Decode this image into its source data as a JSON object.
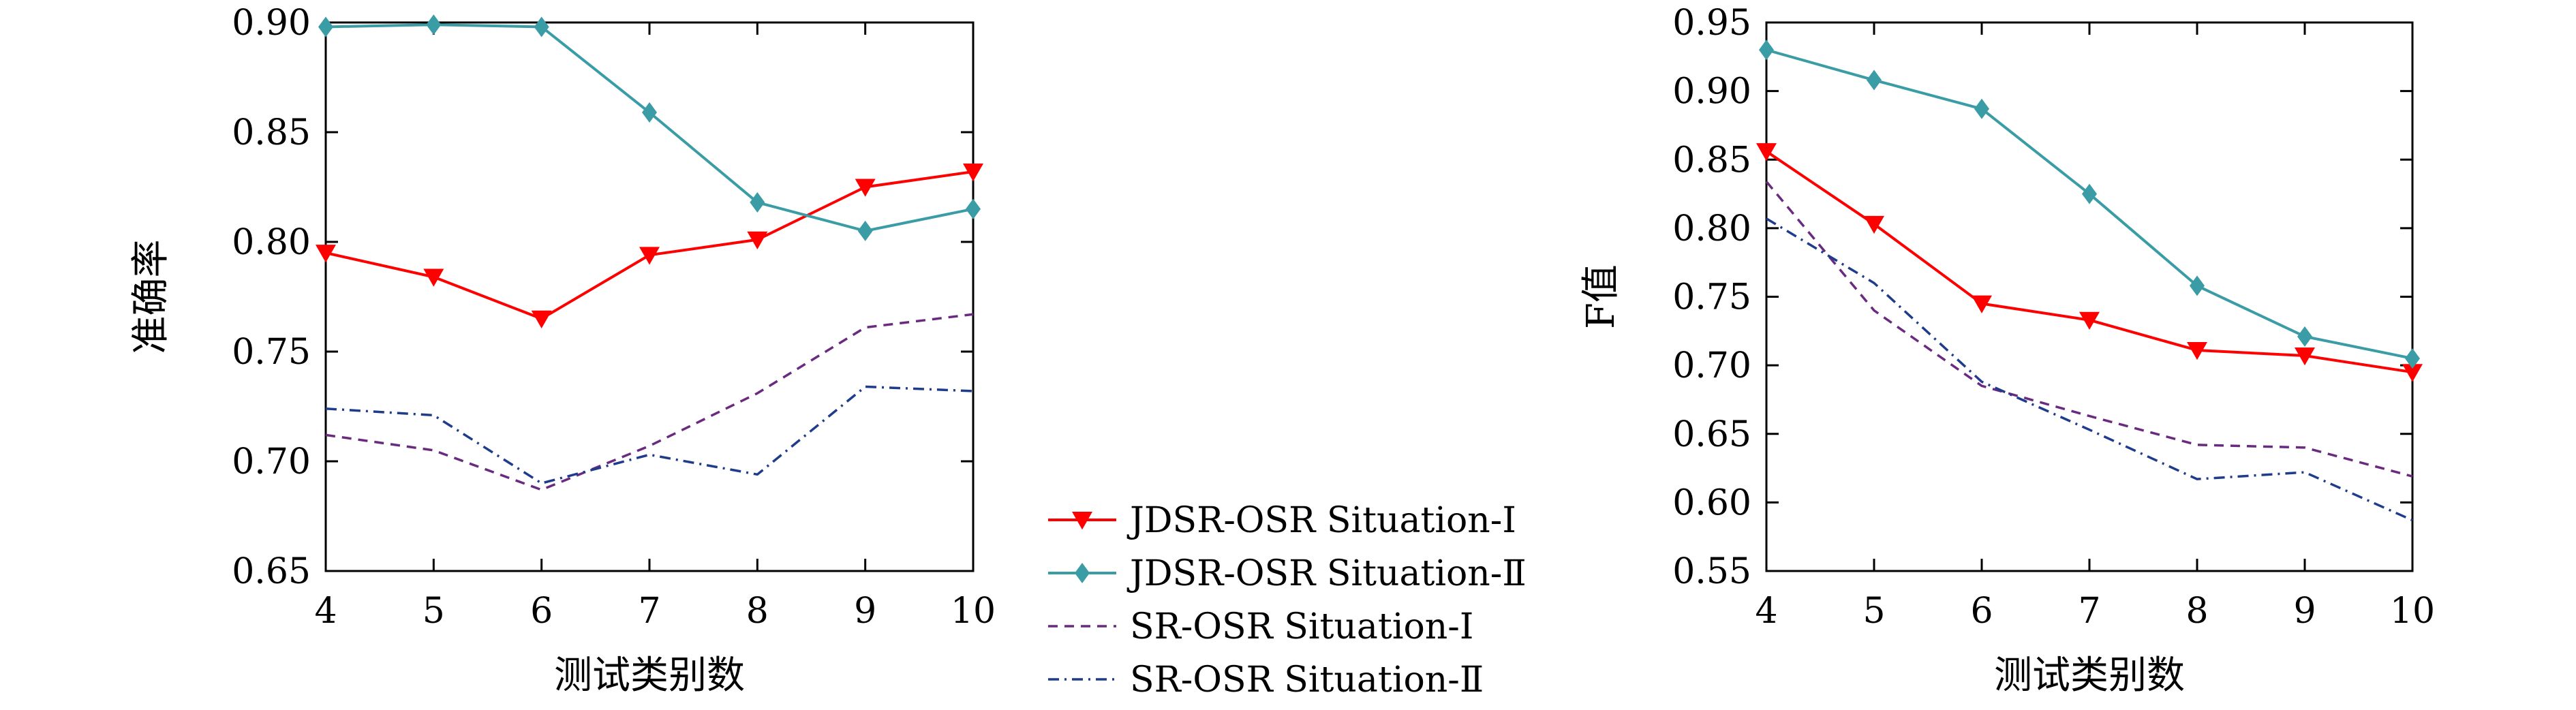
{
  "colors": {
    "JDSR-OSR Situation-Ⅰ": "#ff0000",
    "JDSR-OSR Situation-Ⅱ": "#3a9ca4",
    "SR-OSR Situation-Ⅰ": "#6a2a80",
    "SR-OSR Situation-Ⅱ": "#1f3b8c"
  },
  "legend": {
    "items": [
      {
        "label": "JDSR-OSR Situation-Ⅰ",
        "style": "solid",
        "marker": "triangle-down"
      },
      {
        "label": "JDSR-OSR Situation-Ⅱ",
        "style": "solid",
        "marker": "diamond"
      },
      {
        "label": "SR-OSR Situation-Ⅰ",
        "style": "dashed",
        "marker": "none"
      },
      {
        "label": "SR-OSR Situation-Ⅱ",
        "style": "dashdot",
        "marker": "none"
      }
    ]
  },
  "chart_data": [
    {
      "type": "line",
      "xlabel": "测试类别数",
      "ylabel": "准确率",
      "x": [
        4,
        5,
        6,
        7,
        8,
        9,
        10
      ],
      "xlim": [
        4,
        10
      ],
      "ylim": [
        0.65,
        0.9
      ],
      "yticks": [
        "0.65",
        "0.70",
        "0.75",
        "0.80",
        "0.85",
        "0.90"
      ],
      "grid": false,
      "series": [
        {
          "name": "JDSR-OSR Situation-Ⅰ",
          "values": [
            0.795,
            0.784,
            0.765,
            0.794,
            0.801,
            0.825,
            0.832
          ]
        },
        {
          "name": "JDSR-OSR Situation-Ⅱ",
          "values": [
            0.898,
            0.899,
            0.898,
            0.859,
            0.818,
            0.805,
            0.815
          ]
        },
        {
          "name": "SR-OSR Situation-Ⅰ",
          "values": [
            0.712,
            0.705,
            0.687,
            0.707,
            0.731,
            0.761,
            0.767
          ]
        },
        {
          "name": "SR-OSR Situation-Ⅱ",
          "values": [
            0.724,
            0.721,
            0.69,
            0.703,
            0.694,
            0.734,
            0.732
          ]
        }
      ]
    },
    {
      "type": "line",
      "xlabel": "测试类别数",
      "ylabel": "F值",
      "x": [
        4,
        5,
        6,
        7,
        8,
        9,
        10
      ],
      "xlim": [
        4,
        10
      ],
      "ylim": [
        0.55,
        0.95
      ],
      "yticks": [
        "0.55",
        "0.60",
        "0.65",
        "0.70",
        "0.75",
        "0.80",
        "0.85",
        "0.90",
        "0.95"
      ],
      "grid": false,
      "series": [
        {
          "name": "JDSR-OSR Situation-Ⅰ",
          "values": [
            0.856,
            0.803,
            0.745,
            0.733,
            0.711,
            0.707,
            0.695
          ]
        },
        {
          "name": "JDSR-OSR Situation-Ⅱ",
          "values": [
            0.93,
            0.908,
            0.887,
            0.825,
            0.758,
            0.721,
            0.705
          ]
        },
        {
          "name": "SR-OSR Situation-Ⅰ",
          "values": [
            0.834,
            0.74,
            0.685,
            0.663,
            0.642,
            0.64,
            0.619
          ]
        },
        {
          "name": "SR-OSR Situation-Ⅱ",
          "values": [
            0.807,
            0.76,
            0.688,
            0.653,
            0.617,
            0.622,
            0.587
          ]
        }
      ]
    }
  ]
}
